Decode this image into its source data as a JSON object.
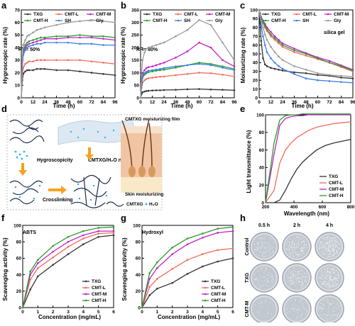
{
  "panels": {
    "a": {
      "label": "a",
      "ylabel": "Hygroscopic rate (%)",
      "xlabel": "Time (h)",
      "annotation": "RH= 50%"
    },
    "b": {
      "label": "b",
      "ylabel": "Hygroscopic rate (%)",
      "xlabel": "Time (h)",
      "annotation": "RH= 80%"
    },
    "c": {
      "label": "c",
      "ylabel": "Moisturizing rate (%)",
      "xlabel": "Time (h)",
      "annotation": "silica gel"
    },
    "d": {
      "label": "d",
      "hygro": "Hygroscopicity",
      "cross": "Crosslinking",
      "network": "CMTXG/H₂O network",
      "film": "CMTXG moisturizing film",
      "skin": "Skin moisturizing",
      "leg_cmtxg": "CMTXG",
      "leg_h2o": "H₂O"
    },
    "e": {
      "label": "e",
      "ylabel": "Light transmittance (%)",
      "xlabel": "Wavelength (nm)"
    },
    "f": {
      "label": "f",
      "ylabel": "Scavenging activity (%)",
      "xlabel": "Concentration (mg/mL)",
      "annotation": "ABTS"
    },
    "g": {
      "label": "g",
      "ylabel": "Scavenging activity (%)",
      "xlabel": "Concentration (mg/mL)",
      "annotation": "Hydroxyl"
    },
    "h": {
      "label": "h",
      "cols": [
        "0.5 h",
        "2 h",
        "4 h"
      ],
      "rows": [
        "Control",
        "TXG",
        "CMT-M"
      ]
    }
  },
  "colors": {
    "TXG": "#333333",
    "CMT-L": "#f26b5b",
    "CMT-M": "#c21fc7",
    "CMT-H": "#2a9d2a",
    "SH": "#3d7fe6",
    "Gly": "#9a9a9a"
  },
  "chart_data": [
    {
      "id": "a",
      "type": "line",
      "x": [
        0,
        1,
        2,
        4,
        6,
        8,
        12,
        16,
        20,
        24,
        36,
        48,
        60,
        72,
        84,
        96
      ],
      "xlim": [
        0,
        96
      ],
      "ylim": [
        0,
        70
      ],
      "xticks": [
        0,
        12,
        24,
        36,
        48,
        60,
        72,
        84,
        96
      ],
      "yticks": [
        0,
        10,
        20,
        30,
        40,
        50,
        60,
        70
      ],
      "legend": "top",
      "series": [
        {
          "name": "TXG",
          "values": [
            0,
            14,
            19,
            21,
            22,
            22,
            22,
            23,
            23,
            23,
            22,
            22,
            21,
            20,
            19,
            18
          ]
        },
        {
          "name": "CMT-L",
          "values": [
            0,
            18,
            24,
            27,
            28,
            29,
            29,
            30,
            30,
            30,
            30,
            30,
            30,
            29,
            28,
            27
          ]
        },
        {
          "name": "CMT-M",
          "values": [
            0,
            28,
            36,
            40,
            42,
            43,
            44,
            45,
            46,
            47,
            47,
            48,
            48,
            48,
            47,
            46
          ]
        },
        {
          "name": "CMT-H",
          "values": [
            0,
            30,
            38,
            42,
            44,
            45,
            46,
            47,
            48,
            48,
            49,
            49,
            50,
            49,
            49,
            48
          ]
        },
        {
          "name": "SH",
          "values": [
            0,
            26,
            34,
            38,
            40,
            41,
            42,
            43,
            43,
            44,
            44,
            44,
            43,
            43,
            42,
            42
          ]
        },
        {
          "name": "Gly",
          "values": [
            0,
            32,
            42,
            46,
            49,
            50,
            52,
            54,
            55,
            56,
            58,
            60,
            61,
            62,
            61,
            60
          ]
        }
      ]
    },
    {
      "id": "b",
      "type": "line",
      "x": [
        0,
        1,
        2,
        4,
        6,
        8,
        12,
        16,
        20,
        24,
        36,
        48,
        60,
        72,
        84,
        96
      ],
      "xlim": [
        0,
        96
      ],
      "ylim": [
        0,
        350
      ],
      "xticks": [
        0,
        12,
        24,
        36,
        48,
        60,
        72,
        84,
        96
      ],
      "yticks": [
        0,
        50,
        100,
        150,
        200,
        250,
        300,
        350
      ],
      "legend": "top",
      "series": [
        {
          "name": "TXG",
          "values": [
            0,
            15,
            22,
            25,
            27,
            28,
            29,
            30,
            30,
            31,
            32,
            34,
            35,
            33,
            32,
            30
          ]
        },
        {
          "name": "CMT-L",
          "values": [
            0,
            40,
            60,
            70,
            75,
            78,
            80,
            82,
            84,
            85,
            90,
            95,
            100,
            98,
            92,
            85
          ]
        },
        {
          "name": "CMT-M",
          "values": [
            0,
            60,
            95,
            110,
            118,
            122,
            125,
            130,
            135,
            140,
            160,
            185,
            220,
            200,
            150,
            125
          ]
        },
        {
          "name": "CMT-H",
          "values": [
            0,
            50,
            80,
            92,
            98,
            102,
            105,
            108,
            110,
            112,
            120,
            130,
            140,
            135,
            125,
            115
          ]
        },
        {
          "name": "SH",
          "values": [
            0,
            55,
            85,
            98,
            104,
            108,
            110,
            112,
            115,
            118,
            125,
            130,
            135,
            130,
            120,
            110
          ]
        },
        {
          "name": "Gly",
          "values": [
            0,
            90,
            150,
            180,
            195,
            200,
            205,
            210,
            215,
            220,
            245,
            270,
            310,
            290,
            220,
            150
          ]
        }
      ]
    },
    {
      "id": "c",
      "type": "line",
      "x": [
        0,
        1,
        2,
        4,
        6,
        8,
        12,
        16,
        20,
        24,
        36,
        48,
        60,
        72,
        84,
        96
      ],
      "xlim": [
        0,
        96
      ],
      "ylim": [
        0,
        100
      ],
      "xticks": [
        0,
        12,
        24,
        36,
        48,
        60,
        72,
        84,
        96
      ],
      "yticks": [
        0,
        10,
        20,
        30,
        40,
        50,
        60,
        70,
        80,
        90,
        100
      ],
      "legend": "top",
      "series": [
        {
          "name": "TXG",
          "values": [
            100,
            85,
            65,
            45,
            38,
            36,
            34,
            33,
            32,
            31,
            29,
            28,
            26,
            25,
            23,
            22
          ]
        },
        {
          "name": "CMT-L",
          "values": [
            100,
            95,
            90,
            85,
            80,
            76,
            70,
            66,
            62,
            58,
            52,
            48,
            44,
            40,
            35,
            30
          ]
        },
        {
          "name": "CMT-M",
          "values": [
            100,
            96,
            92,
            88,
            84,
            80,
            75,
            70,
            66,
            62,
            56,
            51,
            46,
            42,
            37,
            32
          ]
        },
        {
          "name": "CMT-H",
          "values": [
            100,
            95,
            90,
            86,
            82,
            78,
            72,
            68,
            64,
            60,
            54,
            50,
            45,
            40,
            36,
            31
          ]
        },
        {
          "name": "SH",
          "values": [
            100,
            92,
            82,
            70,
            60,
            52,
            45,
            40,
            36,
            33,
            27,
            22,
            20,
            19,
            18,
            17
          ]
        },
        {
          "name": "Gly",
          "values": [
            100,
            94,
            88,
            80,
            72,
            66,
            58,
            52,
            47,
            43,
            36,
            32,
            28,
            26,
            25,
            24
          ]
        }
      ]
    },
    {
      "id": "e",
      "type": "line",
      "x": [
        200,
        260,
        300,
        340,
        380,
        420,
        460,
        500,
        560,
        620,
        680,
        740,
        800
      ],
      "xlim": [
        200,
        800
      ],
      "ylim": [
        0,
        100
      ],
      "xticks": [
        200,
        400,
        600,
        800
      ],
      "yticks": [
        0,
        20,
        40,
        60,
        80,
        100
      ],
      "legend": "bottom-right",
      "series": [
        {
          "name": "TXG",
          "values": [
            0,
            0,
            3,
            14,
            27,
            38,
            46,
            52,
            60,
            65,
            68,
            70,
            72
          ]
        },
        {
          "name": "CMT-L",
          "values": [
            0,
            14,
            45,
            60,
            68,
            74,
            78,
            82,
            86,
            88,
            90,
            91,
            92
          ]
        },
        {
          "name": "CMT-M",
          "values": [
            0,
            55,
            88,
            96,
            98,
            99,
            99,
            100,
            100,
            100,
            100,
            100,
            100
          ]
        },
        {
          "name": "CMT-H",
          "values": [
            0,
            68,
            94,
            99,
            100,
            100,
            101,
            101,
            101,
            101,
            101,
            101,
            101
          ]
        }
      ]
    },
    {
      "id": "f",
      "type": "line",
      "x": [
        0,
        0.5,
        1,
        2,
        3,
        4,
        5,
        6
      ],
      "xlim": [
        0,
        6
      ],
      "ylim": [
        0,
        100
      ],
      "xticks": [
        0,
        1,
        2,
        3,
        4,
        5,
        6
      ],
      "yticks": [
        0,
        20,
        40,
        60,
        80,
        100
      ],
      "legend": "bottom-right",
      "series": [
        {
          "name": "TXG",
          "values": [
            0,
            22,
            38,
            52,
            65,
            77,
            86,
            88
          ]
        },
        {
          "name": "CMT-L",
          "values": [
            0,
            34,
            48,
            61,
            74,
            84,
            90,
            91
          ]
        },
        {
          "name": "CMT-M",
          "values": [
            0,
            40,
            54,
            68,
            80,
            88,
            93,
            93
          ]
        },
        {
          "name": "CMT-H",
          "values": [
            0,
            44,
            58,
            75,
            86,
            93,
            97,
            98
          ]
        }
      ]
    },
    {
      "id": "g",
      "type": "line",
      "x": [
        0,
        0.5,
        1,
        2,
        3,
        4,
        5,
        6
      ],
      "xlim": [
        0,
        6
      ],
      "ylim": [
        0,
        100
      ],
      "xticks": [
        0,
        1,
        2,
        3,
        4,
        5,
        6
      ],
      "yticks": [
        0,
        20,
        40,
        60,
        80,
        100
      ],
      "legend": "bottom-right",
      "series": [
        {
          "name": "TXG",
          "values": [
            0,
            15,
            23,
            30,
            41,
            50,
            56,
            60
          ]
        },
        {
          "name": "CMT-L",
          "values": [
            0,
            25,
            35,
            47,
            58,
            65,
            70,
            72
          ]
        },
        {
          "name": "CMT-M",
          "values": [
            0,
            35,
            48,
            65,
            77,
            85,
            91,
            93
          ]
        },
        {
          "name": "CMT-H",
          "values": [
            0,
            42,
            55,
            73,
            84,
            90,
            96,
            98
          ]
        }
      ]
    }
  ]
}
